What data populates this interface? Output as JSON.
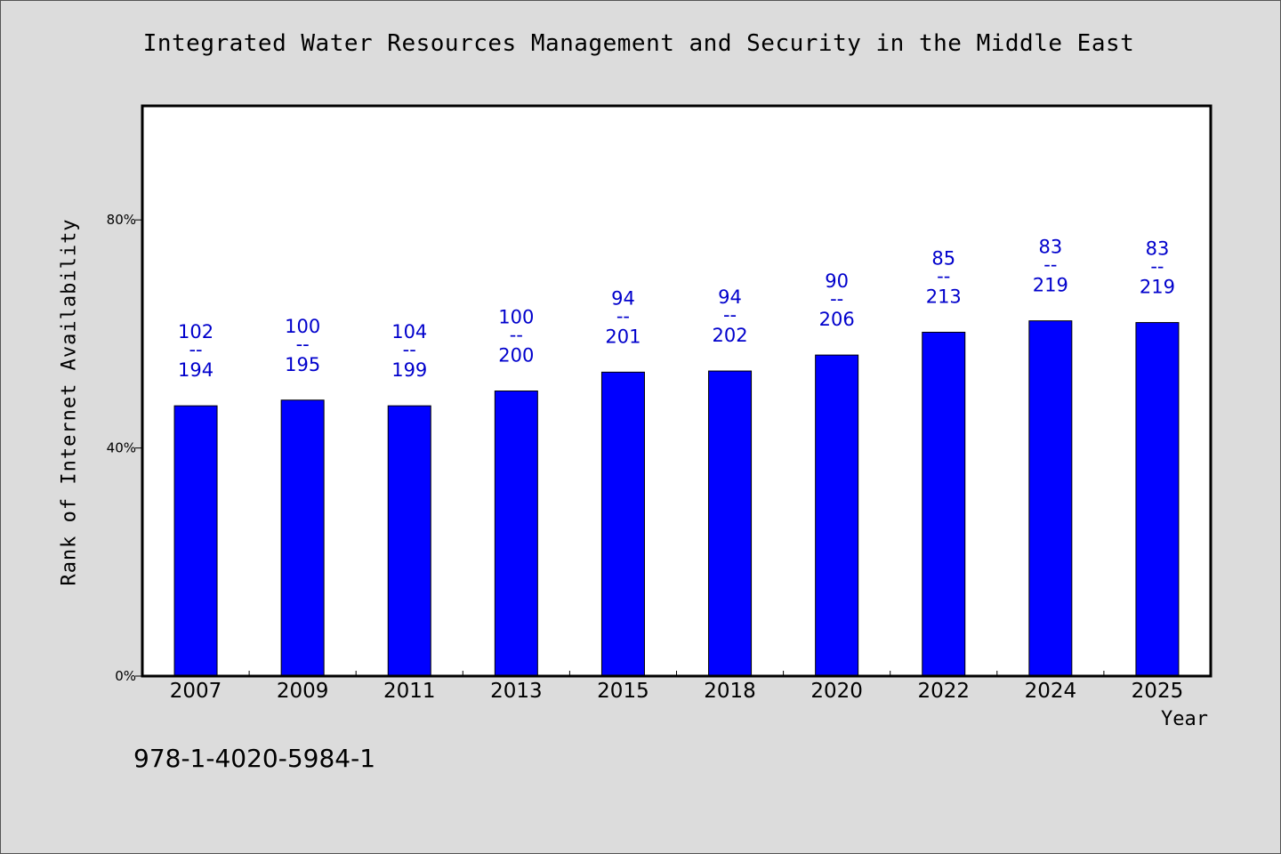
{
  "chart_data": {
    "type": "bar",
    "title": "Integrated Water Resources Management and Security in the Middle East",
    "xlabel": "Year",
    "ylabel": "Rank of Internet Availability",
    "categories": [
      "2007",
      "2009",
      "2011",
      "2013",
      "2015",
      "2018",
      "2020",
      "2022",
      "2024",
      "2025"
    ],
    "values": [
      47.4,
      48.4,
      47.4,
      50.0,
      53.3,
      53.5,
      56.3,
      60.3,
      62.3,
      62.0
    ],
    "data_labels": [
      {
        "rank": "102",
        "sep": "--",
        "total": "194"
      },
      {
        "rank": "100",
        "sep": "--",
        "total": "195"
      },
      {
        "rank": "104",
        "sep": "--",
        "total": "199"
      },
      {
        "rank": "100",
        "sep": "--",
        "total": "200"
      },
      {
        "rank": "94",
        "sep": "--",
        "total": "201"
      },
      {
        "rank": "94",
        "sep": "--",
        "total": "202"
      },
      {
        "rank": "90",
        "sep": "--",
        "total": "206"
      },
      {
        "rank": "85",
        "sep": "--",
        "total": "213"
      },
      {
        "rank": "83",
        "sep": "--",
        "total": "219"
      },
      {
        "rank": "83",
        "sep": "--",
        "total": "219"
      }
    ],
    "yticks": [
      "0%",
      "40%",
      "80%"
    ],
    "ytick_values": [
      0,
      40,
      80
    ],
    "ylim": [
      0,
      100
    ],
    "grid": false,
    "colors": {
      "bar": "#0000ff",
      "label": "#0000cc",
      "background": "#dcdcdc",
      "plot": "#ffffff"
    }
  },
  "footer": {
    "isbn": "978-1-4020-5984-1"
  }
}
